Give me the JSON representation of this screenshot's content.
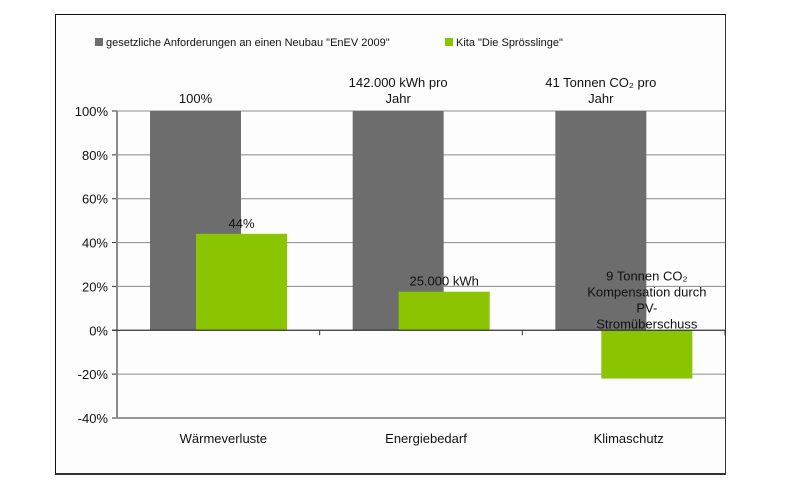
{
  "chart_data": {
    "type": "bar",
    "title": "",
    "xlabel": "",
    "ylabel": "",
    "ylim": [
      -40,
      100
    ],
    "yticks": [
      -40,
      -20,
      0,
      20,
      40,
      60,
      80,
      100
    ],
    "ytick_labels": [
      "-40%",
      "-20%",
      "0%",
      "20%",
      "40%",
      "60%",
      "80%",
      "100%"
    ],
    "grid": true,
    "legend_position": "top",
    "categories": [
      "Wärmeverluste",
      "Energiebedarf",
      "Klimaschutz"
    ],
    "series": [
      {
        "name": "gesetzliche Anforderungen an einen Neubau \"EnEV 2009\"",
        "color": "#6d6d6d",
        "values": [
          100,
          100,
          100
        ],
        "data_labels": [
          [
            "100%"
          ],
          [
            "142.000 kWh pro",
            "Jahr"
          ],
          [
            "41 Tonnen CO₂ pro",
            "Jahr"
          ]
        ]
      },
      {
        "name": "Kita \"Die Sprösslinge\"",
        "color": "#8bc400",
        "values": [
          44,
          17.6,
          -22
        ],
        "data_labels": [
          [
            "44%"
          ],
          [
            "25.000 kWh"
          ],
          [
            "9 Tonnen CO₂",
            "Kompensation durch",
            "PV-",
            "Stromüberschuss"
          ]
        ]
      }
    ]
  }
}
